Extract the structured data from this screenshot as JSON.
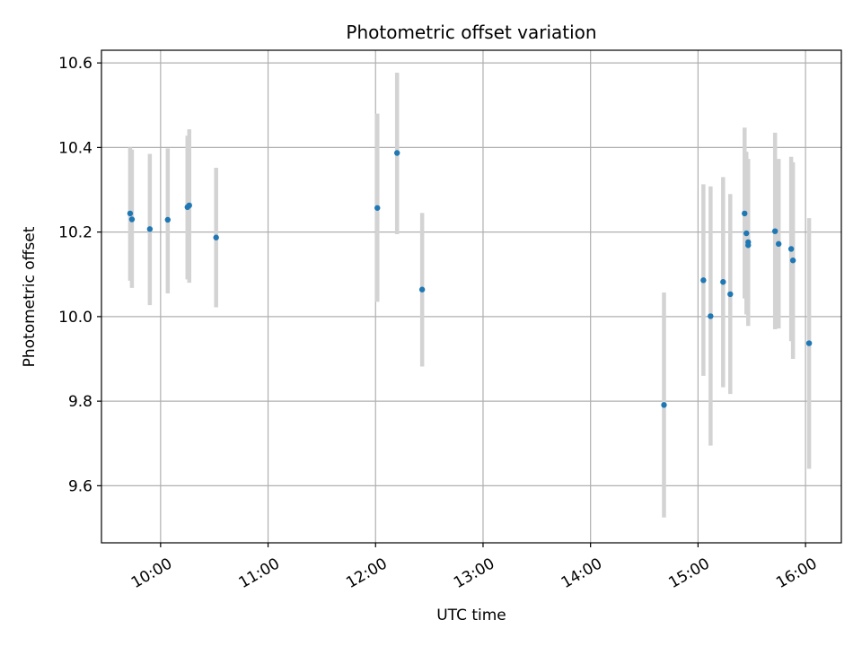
{
  "chart_data": {
    "type": "scatter",
    "title": "Photometric offset variation",
    "xlabel": "UTC time",
    "ylabel": "Photometric offset",
    "x_axis": "time",
    "xlim": [
      "09:27",
      "16:20"
    ],
    "ylim": [
      9.465,
      10.63
    ],
    "xticks": [
      "10:00",
      "11:00",
      "12:00",
      "13:00",
      "14:00",
      "15:00",
      "16:00"
    ],
    "yticks": [
      9.6,
      9.8,
      10.0,
      10.2,
      10.4,
      10.6
    ],
    "grid": true,
    "marker_color": "#1f77b4",
    "errorbar_color": "#d3d3d3",
    "points": [
      {
        "t": "09:43",
        "y": 10.244,
        "lo": 10.085,
        "hi": 10.4
      },
      {
        "t": "09:44",
        "y": 10.23,
        "lo": 10.068,
        "hi": 10.395
      },
      {
        "t": "09:54",
        "y": 10.207,
        "lo": 10.027,
        "hi": 10.385
      },
      {
        "t": "10:04",
        "y": 10.229,
        "lo": 10.055,
        "hi": 10.398
      },
      {
        "t": "10:15",
        "y": 10.259,
        "lo": 10.088,
        "hi": 10.428
      },
      {
        "t": "10:16",
        "y": 10.263,
        "lo": 10.08,
        "hi": 10.443
      },
      {
        "t": "10:31",
        "y": 10.187,
        "lo": 10.022,
        "hi": 10.352
      },
      {
        "t": "12:01",
        "y": 10.257,
        "lo": 10.035,
        "hi": 10.48
      },
      {
        "t": "12:12",
        "y": 10.387,
        "lo": 10.195,
        "hi": 10.577
      },
      {
        "t": "12:26",
        "y": 10.064,
        "lo": 9.882,
        "hi": 10.245
      },
      {
        "t": "14:41",
        "y": 9.791,
        "lo": 9.525,
        "hi": 10.057
      },
      {
        "t": "15:03",
        "y": 10.086,
        "lo": 9.86,
        "hi": 10.313
      },
      {
        "t": "15:07",
        "y": 10.001,
        "lo": 9.695,
        "hi": 10.308
      },
      {
        "t": "15:14",
        "y": 10.082,
        "lo": 9.833,
        "hi": 10.33
      },
      {
        "t": "15:18",
        "y": 10.053,
        "lo": 9.817,
        "hi": 10.29
      },
      {
        "t": "15:26",
        "y": 10.244,
        "lo": 10.043,
        "hi": 10.447
      },
      {
        "t": "15:27",
        "y": 10.197,
        "lo": 10.005,
        "hi": 10.39
      },
      {
        "t": "15:28",
        "y": 10.176,
        "lo": 9.978,
        "hi": 10.373
      },
      {
        "t": "15:28",
        "y": 10.169,
        "lo": 9.998,
        "hi": 10.34
      },
      {
        "t": "15:43",
        "y": 10.202,
        "lo": 9.97,
        "hi": 10.435
      },
      {
        "t": "15:45",
        "y": 10.172,
        "lo": 9.972,
        "hi": 10.373
      },
      {
        "t": "15:52",
        "y": 10.16,
        "lo": 9.942,
        "hi": 10.378
      },
      {
        "t": "15:53",
        "y": 10.133,
        "lo": 9.9,
        "hi": 10.365
      },
      {
        "t": "16:02",
        "y": 9.937,
        "lo": 9.64,
        "hi": 10.233
      }
    ]
  }
}
